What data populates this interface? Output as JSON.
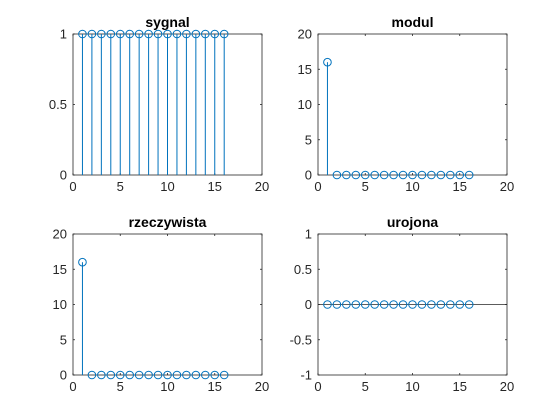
{
  "chart_data": [
    {
      "type": "stem",
      "title": "sygnal",
      "x": [
        1,
        2,
        3,
        4,
        5,
        6,
        7,
        8,
        9,
        10,
        11,
        12,
        13,
        14,
        15,
        16
      ],
      "values": [
        1,
        1,
        1,
        1,
        1,
        1,
        1,
        1,
        1,
        1,
        1,
        1,
        1,
        1,
        1,
        1
      ],
      "xlim": [
        0,
        20
      ],
      "ylim": [
        0,
        1
      ],
      "xticks": [
        0,
        5,
        10,
        15,
        20
      ],
      "yticks": [
        0,
        0.5,
        1
      ],
      "xtick_labels": [
        "0",
        "5",
        "10",
        "15",
        "20"
      ],
      "ytick_labels": [
        "0",
        "0.5",
        "1"
      ],
      "grid": false
    },
    {
      "type": "stem",
      "title": "modul",
      "x": [
        1,
        2,
        3,
        4,
        5,
        6,
        7,
        8,
        9,
        10,
        11,
        12,
        13,
        14,
        15,
        16
      ],
      "values": [
        16,
        0,
        0,
        0,
        0,
        0,
        0,
        0,
        0,
        0,
        0,
        0,
        0,
        0,
        0,
        0
      ],
      "xlim": [
        0,
        20
      ],
      "ylim": [
        0,
        20
      ],
      "xticks": [
        0,
        5,
        10,
        15,
        20
      ],
      "yticks": [
        0,
        5,
        10,
        15,
        20
      ],
      "xtick_labels": [
        "0",
        "5",
        "10",
        "15",
        "20"
      ],
      "ytick_labels": [
        "0",
        "5",
        "10",
        "15",
        "20"
      ],
      "grid": false
    },
    {
      "type": "stem",
      "title": "rzeczywista",
      "x": [
        1,
        2,
        3,
        4,
        5,
        6,
        7,
        8,
        9,
        10,
        11,
        12,
        13,
        14,
        15,
        16
      ],
      "values": [
        16,
        0,
        0,
        0,
        0,
        0,
        0,
        0,
        0,
        0,
        0,
        0,
        0,
        0,
        0,
        0
      ],
      "xlim": [
        0,
        20
      ],
      "ylim": [
        0,
        20
      ],
      "xticks": [
        0,
        5,
        10,
        15,
        20
      ],
      "yticks": [
        0,
        5,
        10,
        15,
        20
      ],
      "xtick_labels": [
        "0",
        "5",
        "10",
        "15",
        "20"
      ],
      "ytick_labels": [
        "0",
        "5",
        "10",
        "15",
        "20"
      ],
      "grid": false
    },
    {
      "type": "stem",
      "title": "urojona",
      "x": [
        1,
        2,
        3,
        4,
        5,
        6,
        7,
        8,
        9,
        10,
        11,
        12,
        13,
        14,
        15,
        16
      ],
      "values": [
        0,
        0,
        0,
        0,
        0,
        0,
        0,
        0,
        0,
        0,
        0,
        0,
        0,
        0,
        0,
        0
      ],
      "xlim": [
        0,
        20
      ],
      "ylim": [
        -1,
        1
      ],
      "xticks": [
        0,
        5,
        10,
        15,
        20
      ],
      "yticks": [
        -1,
        -0.5,
        0,
        0.5,
        1
      ],
      "xtick_labels": [
        "0",
        "5",
        "10",
        "15",
        "20"
      ],
      "ytick_labels": [
        "-1",
        "-0.5",
        "0",
        "0.5",
        "1"
      ],
      "zero_line": true,
      "grid": false
    }
  ],
  "colors": {
    "stem": "#0072bd",
    "axes": "#262626",
    "background": "#ffffff"
  }
}
